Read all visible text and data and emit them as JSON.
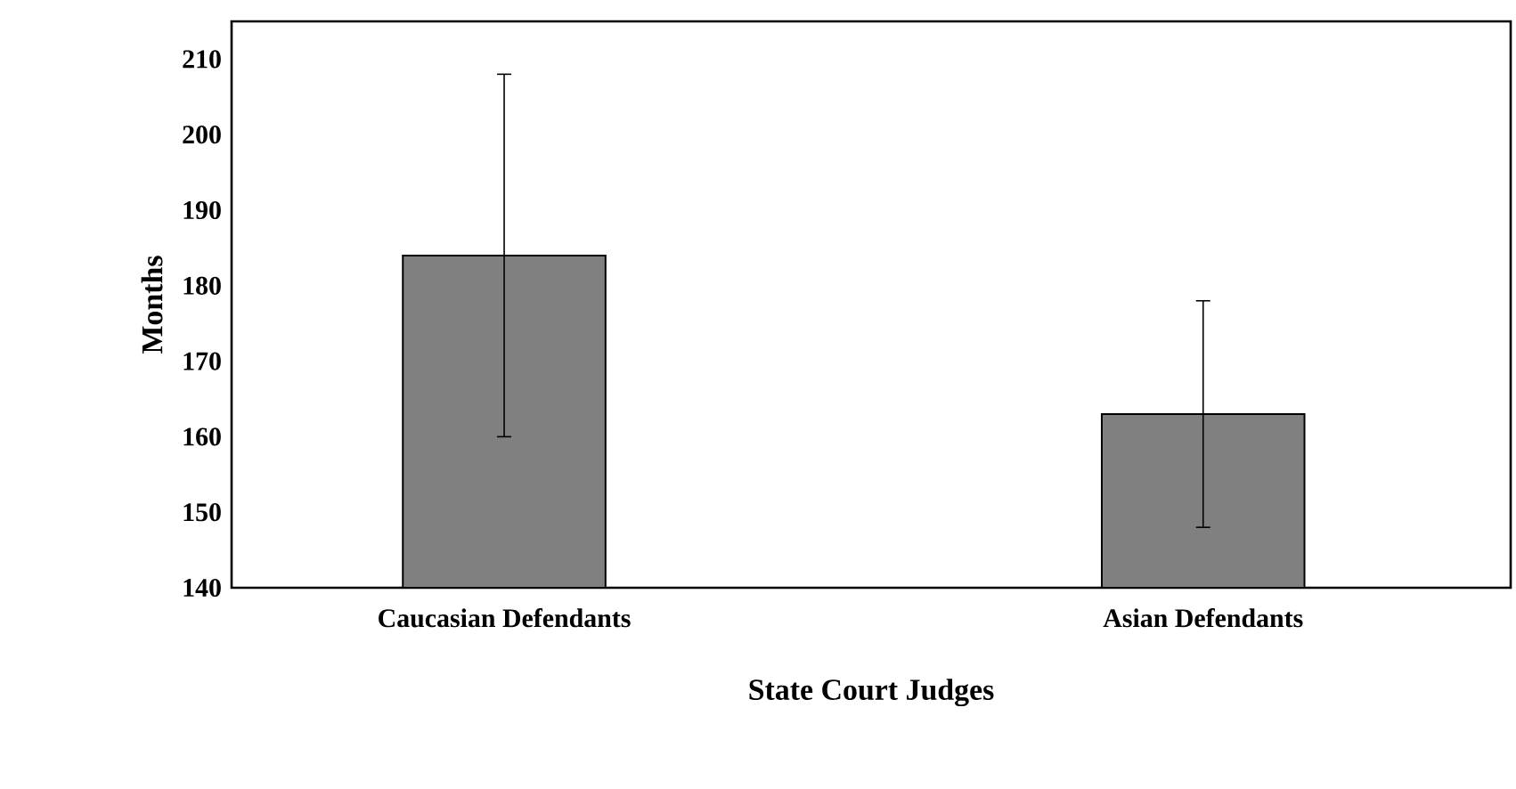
{
  "chart_data": {
    "type": "bar",
    "xlabel": "State Court Judges",
    "ylabel": "Months",
    "categories": [
      "Caucasian Defendants",
      "Asian Defendants"
    ],
    "values": [
      184,
      163
    ],
    "errors": [
      24,
      15
    ],
    "color": "#808080",
    "ylim": [
      140,
      215
    ],
    "yticks": [
      140,
      150,
      160,
      170,
      180,
      190,
      200,
      210
    ]
  }
}
